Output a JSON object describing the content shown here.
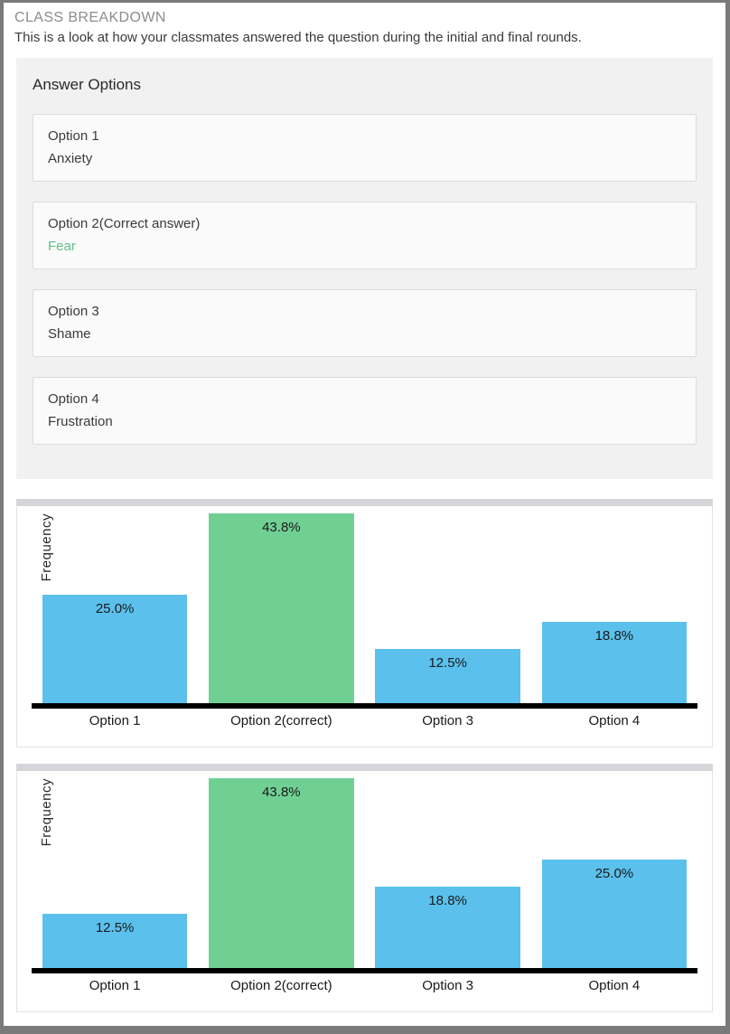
{
  "page": {
    "title": "CLASS BREAKDOWN",
    "subtitle": "This is a look at how your classmates answered the question during the initial and final rounds."
  },
  "answer_options": {
    "heading": "Answer Options",
    "options": [
      {
        "label": "Option 1",
        "text": "Anxiety",
        "correct": false
      },
      {
        "label": "Option 2(Correct answer)",
        "text": "Fear",
        "correct": true
      },
      {
        "label": "Option 3",
        "text": "Shame",
        "correct": false
      },
      {
        "label": "Option 4",
        "text": "Frustration",
        "correct": false
      }
    ]
  },
  "colors": {
    "bar_blue": "#5bc0ec",
    "bar_green": "#70d094",
    "correct_text_green": "#61c189",
    "axis": "#000000",
    "title_gray": "#8c8c8c"
  },
  "chart_data": [
    {
      "type": "bar",
      "name": "initial-round",
      "ylabel": "Frequency",
      "categories": [
        "Option 1",
        "Option 2(correct)",
        "Option 3",
        "Option 4"
      ],
      "values": [
        25.0,
        43.8,
        12.5,
        18.8
      ],
      "labels": [
        "25.0%",
        "43.8%",
        "12.5%",
        "18.8%"
      ],
      "highlight_index": 1,
      "ylim": [
        0,
        43.8
      ],
      "grid": false,
      "legend": false
    },
    {
      "type": "bar",
      "name": "final-round",
      "ylabel": "Frequency",
      "categories": [
        "Option 1",
        "Option 2(correct)",
        "Option 3",
        "Option 4"
      ],
      "values": [
        12.5,
        43.8,
        18.8,
        25.0
      ],
      "labels": [
        "12.5%",
        "43.8%",
        "18.8%",
        "25.0%"
      ],
      "highlight_index": 1,
      "ylim": [
        0,
        43.8
      ],
      "grid": false,
      "legend": false
    }
  ]
}
